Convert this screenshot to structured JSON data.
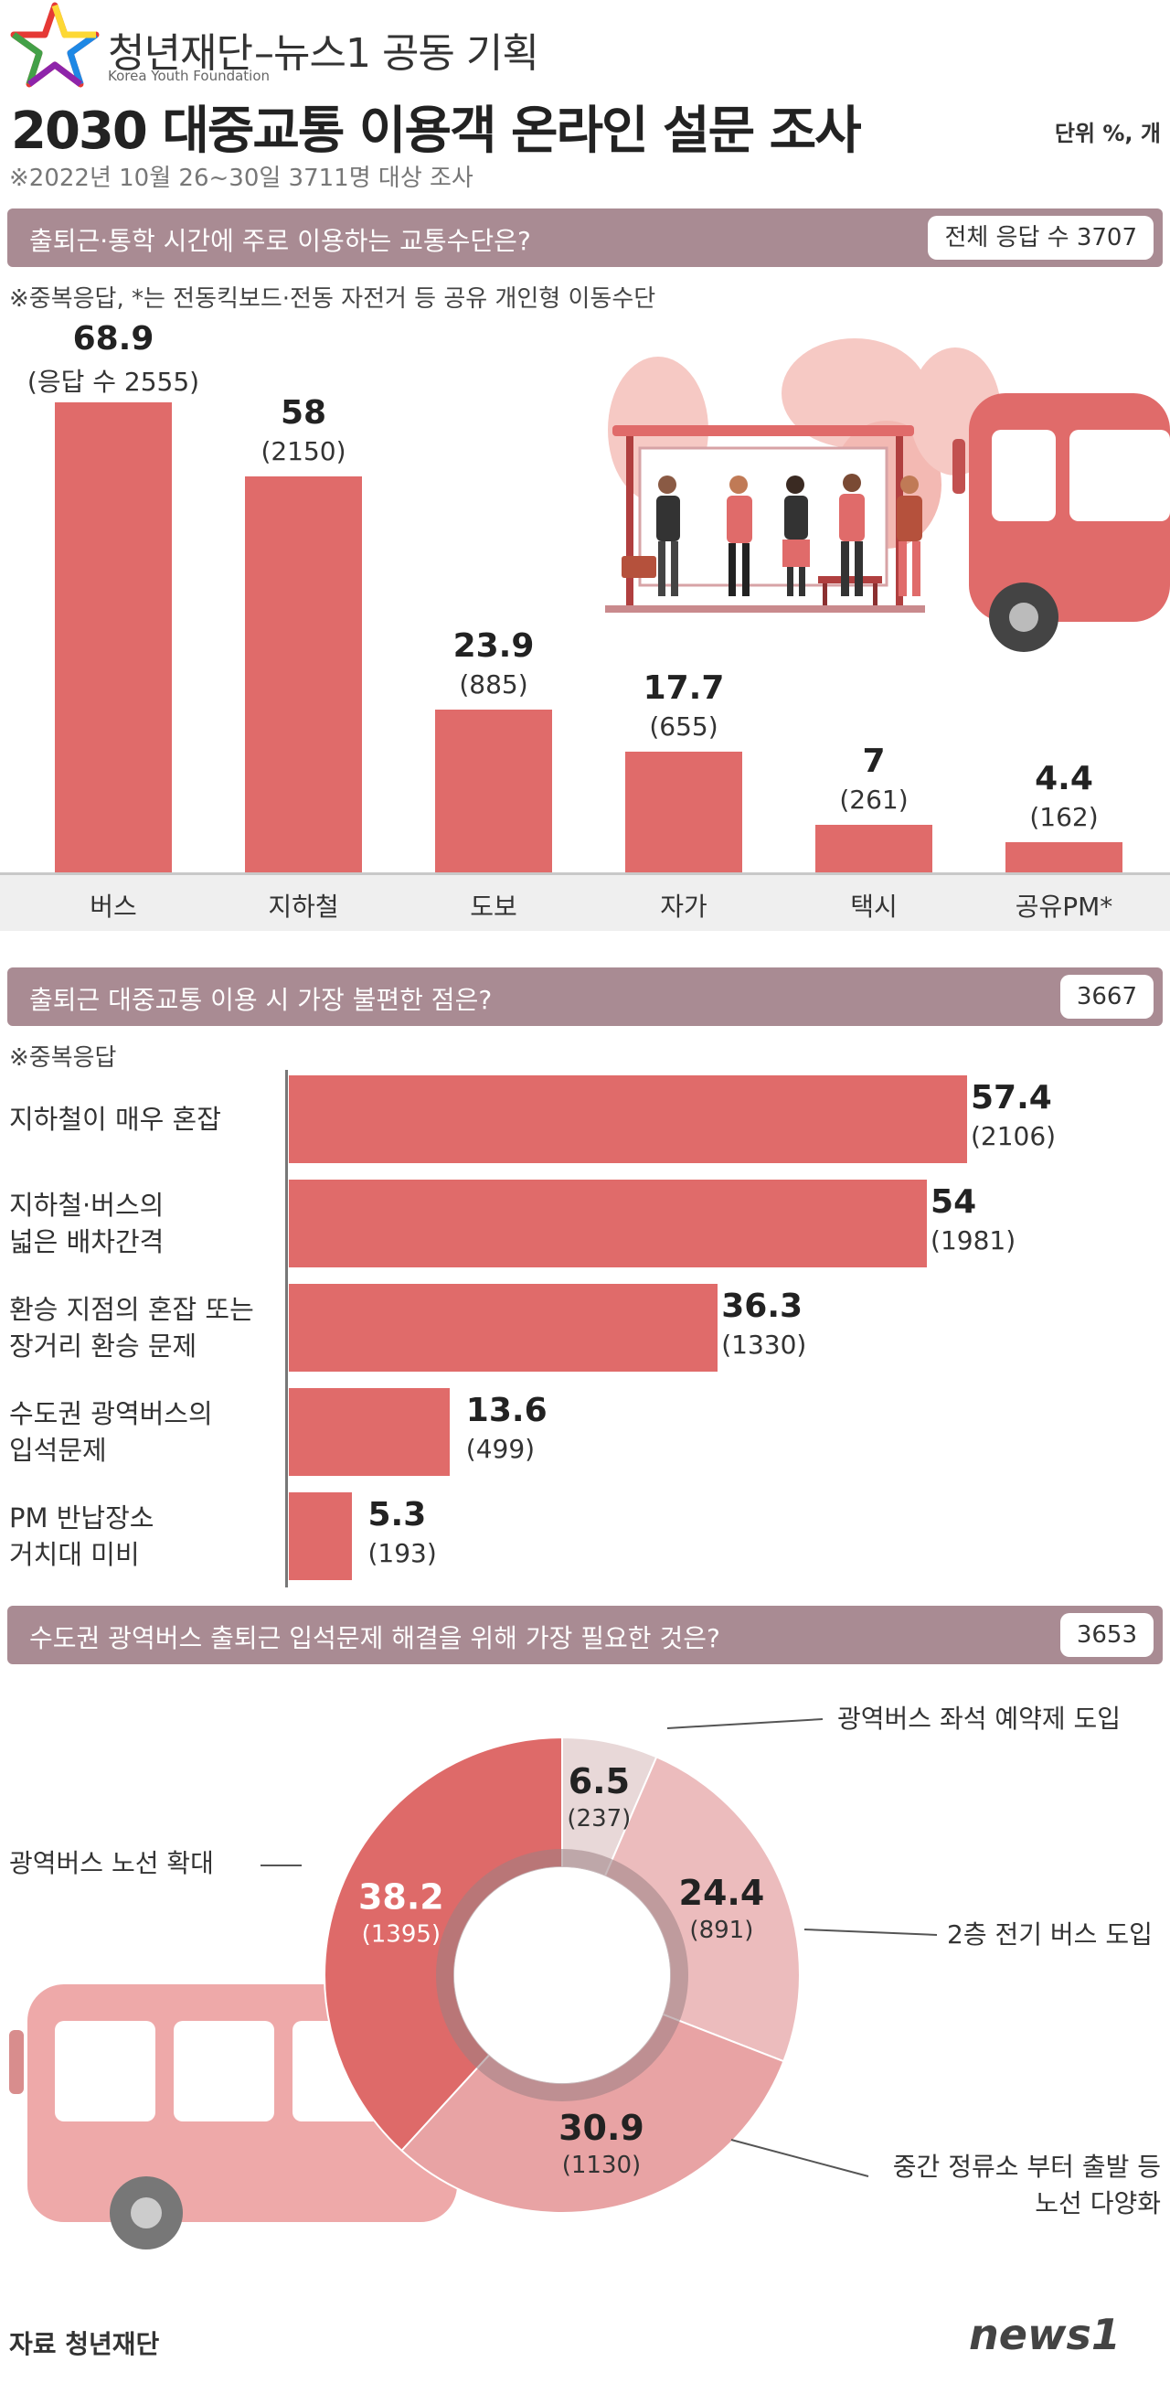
{
  "header": {
    "org_name": "청년재단",
    "org_subtitle": "Korea Youth Foundation",
    "collab": "–뉴스1 공동 기획",
    "title": "2030 대중교통 이용객 온라인 설문 조사",
    "unit": "단위 %, 개",
    "survey_note": "※2022년 10월 26~30일 3711명 대상 조사"
  },
  "sections": {
    "commute": {
      "question": "출퇴근·통학 시간에 주로 이용하는 교통수단은?",
      "total": "전체 응답 수 3707",
      "note": "※중복응답, *는 전동킥보드·전동 자전거 등 공유 개인형 이동수단"
    },
    "inconvenience": {
      "question": "출퇴근 대중교통 이용 시 가장 불편한 점은?",
      "total": "3667",
      "note": "※중복응답"
    },
    "solution": {
      "question": "수도권 광역버스 출퇴근 입석문제 해결을 위해 가장 필요한 것은?",
      "total": "3653"
    }
  },
  "chart_data": [
    {
      "type": "bar",
      "title": "출퇴근·통학 시간에 주로 이용하는 교통수단은?",
      "categories": [
        "버스",
        "지하철",
        "도보",
        "자가",
        "택시",
        "공유PM*"
      ],
      "values": [
        68.9,
        58,
        23.9,
        17.7,
        7,
        4.4
      ],
      "value_labels": [
        "68.9",
        "58",
        "23.9",
        "17.7",
        "7",
        "4.4"
      ],
      "counts": [
        "(응답 수 2555)",
        "(2150)",
        "(885)",
        "(655)",
        "(261)",
        "(162)"
      ],
      "ylim": [
        0,
        75
      ],
      "color": "#e06b6a"
    },
    {
      "type": "bar",
      "orientation": "horizontal",
      "title": "출퇴근 대중교통 이용 시 가장 불편한 점은?",
      "categories": [
        [
          "지하철이 매우 혼잡"
        ],
        [
          "지하철·버스의",
          "넓은 배차간격"
        ],
        [
          "환승 지점의 혼잡 또는",
          "장거리 환승 문제"
        ],
        [
          "수도권 광역버스의",
          "입석문제"
        ],
        [
          "PM 반납장소",
          "거치대 미비"
        ]
      ],
      "values": [
        57.4,
        54,
        36.3,
        13.6,
        5.3
      ],
      "value_labels": [
        "57.4",
        "54",
        "36.3",
        "13.6",
        "5.3"
      ],
      "counts": [
        "(2106)",
        "(1981)",
        "(1330)",
        "(499)",
        "(193)"
      ],
      "xlim": [
        0,
        60
      ],
      "color": "#e06b6a"
    },
    {
      "type": "pie",
      "donut": true,
      "title": "수도권 광역버스 출퇴근 입석문제 해결을 위해 가장 필요한 것은?",
      "slices": [
        {
          "label": "광역버스 좌석 예약제 도입",
          "value": 6.5,
          "value_label": "6.5",
          "count": "(237)",
          "color": "#e8d8d8"
        },
        {
          "label": "2층 전기 버스 도입",
          "value": 24.4,
          "value_label": "24.4",
          "count": "(891)",
          "color": "#ecbcbd"
        },
        {
          "label": [
            "중간 정류소 부터 출발 등",
            "노선 다양화"
          ],
          "value": 30.9,
          "value_label": "30.9",
          "count": "(1130)",
          "color": "#e8a3a4"
        },
        {
          "label": "광역버스 노선 확대",
          "value": 38.2,
          "value_label": "38.2",
          "count": "(1395)",
          "color": "#de6a69"
        }
      ]
    }
  ],
  "footer": {
    "source": "자료 청년재단",
    "brand": "news1"
  }
}
